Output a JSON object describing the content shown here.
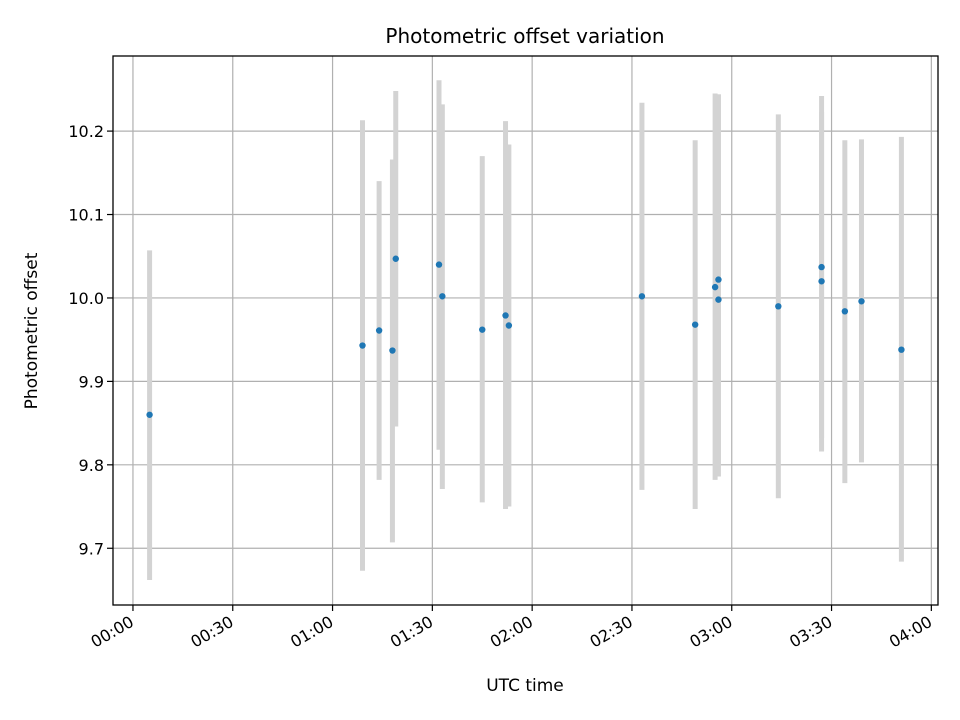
{
  "chart_data": {
    "type": "scatter",
    "title": "Photometric offset variation",
    "xlabel": "UTC time",
    "ylabel": "Photometric offset",
    "grid": true,
    "x_tick_labels": [
      "00:00",
      "00:30",
      "01:00",
      "01:30",
      "02:00",
      "02:30",
      "03:00",
      "03:30",
      "04:00"
    ],
    "y_tick_labels": [
      "9.7",
      "9.8",
      "9.9",
      "10.0",
      "10.1",
      "10.2"
    ],
    "y_ticks": [
      9.7,
      9.8,
      9.9,
      10.0,
      10.1,
      10.2
    ],
    "xlim": [
      "23:54",
      "04:02"
    ],
    "ylim": [
      9.632,
      10.29
    ],
    "colors": {
      "point": "#1f77b4",
      "errorbar": "#d3d3d3",
      "grid": "#b0b0b0"
    },
    "points": [
      {
        "time": "00:05",
        "value": 9.86,
        "err_low": 9.662,
        "err_high": 10.057
      },
      {
        "time": "01:09",
        "value": 9.943,
        "err_low": 9.673,
        "err_high": 10.213
      },
      {
        "time": "01:14",
        "value": 9.961,
        "err_low": 9.782,
        "err_high": 10.14
      },
      {
        "time": "01:18",
        "value": 9.937,
        "err_low": 9.707,
        "err_high": 10.166
      },
      {
        "time": "01:19",
        "value": 10.047,
        "err_low": 9.846,
        "err_high": 10.248
      },
      {
        "time": "01:32",
        "value": 10.04,
        "err_low": 9.818,
        "err_high": 10.261
      },
      {
        "time": "01:33",
        "value": 10.002,
        "err_low": 9.771,
        "err_high": 10.232
      },
      {
        "time": "01:45",
        "value": 9.962,
        "err_low": 9.755,
        "err_high": 10.17
      },
      {
        "time": "01:52",
        "value": 9.979,
        "err_low": 9.747,
        "err_high": 10.212
      },
      {
        "time": "01:53",
        "value": 9.967,
        "err_low": 9.75,
        "err_high": 10.184
      },
      {
        "time": "02:33",
        "value": 10.002,
        "err_low": 9.77,
        "err_high": 10.234
      },
      {
        "time": "02:49",
        "value": 9.968,
        "err_low": 9.747,
        "err_high": 10.189
      },
      {
        "time": "02:55",
        "value": 10.013,
        "err_low": 9.782,
        "err_high": 10.245
      },
      {
        "time": "02:56",
        "value": 9.998,
        "err_low": 9.786,
        "err_high": 10.244
      },
      {
        "time": "02:56",
        "value": 10.022,
        "err_low": 9.8,
        "err_high": 10.244
      },
      {
        "time": "03:14",
        "value": 9.99,
        "err_low": 9.76,
        "err_high": 10.22
      },
      {
        "time": "03:27",
        "value": 10.037,
        "err_low": 9.832,
        "err_high": 10.242
      },
      {
        "time": "03:27",
        "value": 10.02,
        "err_low": 9.816,
        "err_high": 10.223
      },
      {
        "time": "03:34",
        "value": 9.984,
        "err_low": 9.778,
        "err_high": 10.189
      },
      {
        "time": "03:39",
        "value": 9.996,
        "err_low": 9.803,
        "err_high": 10.19
      },
      {
        "time": "03:51",
        "value": 9.938,
        "err_low": 9.684,
        "err_high": 10.193
      }
    ]
  }
}
